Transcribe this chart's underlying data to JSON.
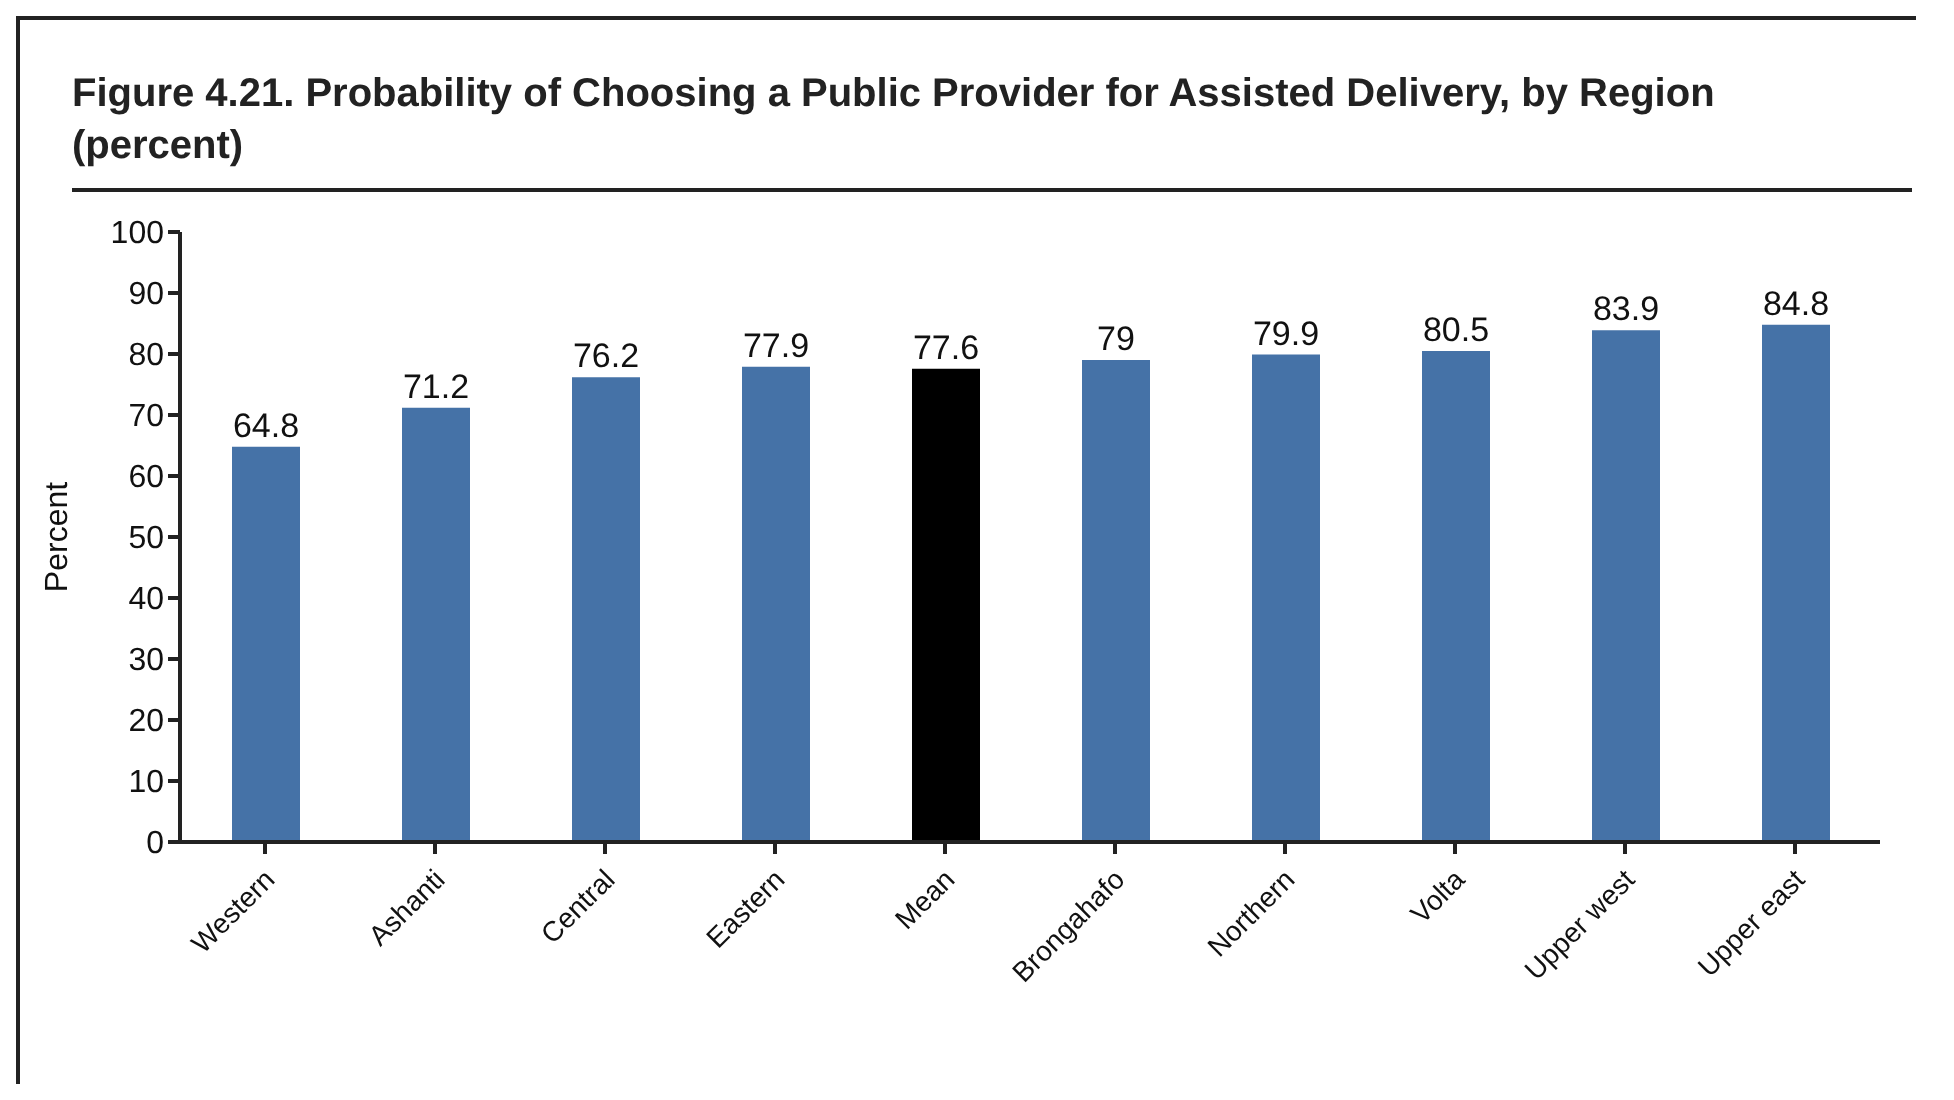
{
  "chart_data": {
    "type": "bar",
    "title": "Figure 4.21. Probability of Choosing a Public Provider for Assisted Delivery, by Region (percent)",
    "ylabel": "Percent",
    "categories": [
      "Western",
      "Ashanti",
      "Central",
      "Eastern",
      "Mean",
      "Brongahafo",
      "Northern",
      "Volta",
      "Upper west",
      "Upper east"
    ],
    "values": [
      64.8,
      71.2,
      76.2,
      77.9,
      77.6,
      79,
      79.9,
      80.5,
      83.9,
      84.8
    ],
    "colors": [
      "#4572a7",
      "#4572a7",
      "#4572a7",
      "#4572a7",
      "#000000",
      "#4572a7",
      "#4572a7",
      "#4572a7",
      "#4572a7",
      "#4572a7"
    ],
    "ylim": [
      0,
      100
    ],
    "yticks": [
      0,
      10,
      20,
      30,
      40,
      50,
      60,
      70,
      80,
      90,
      100
    ],
    "data_labels": true,
    "grid": false
  }
}
